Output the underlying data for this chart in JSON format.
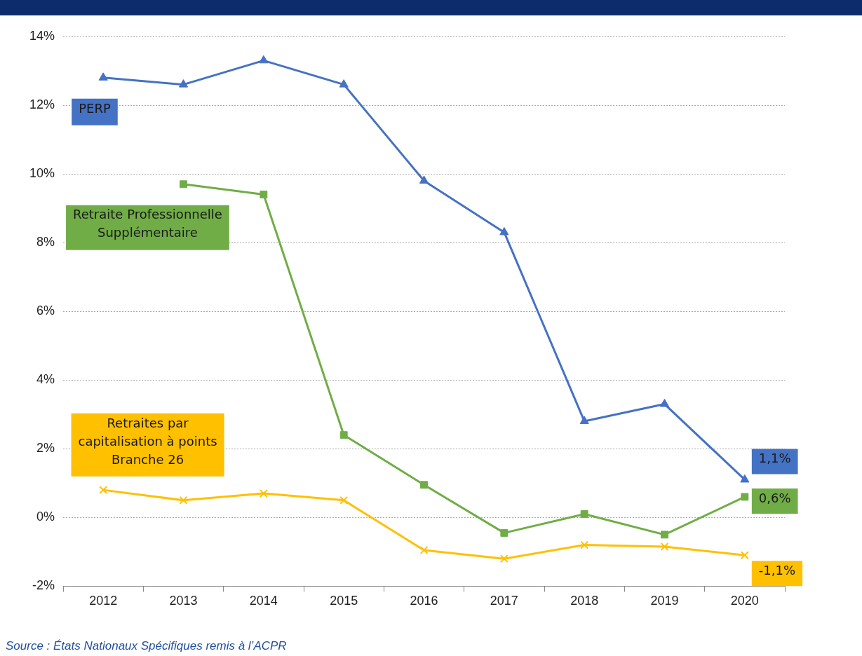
{
  "chart_data": {
    "type": "line",
    "categories": [
      "2012",
      "2013",
      "2014",
      "2015",
      "2016",
      "2017",
      "2018",
      "2019",
      "2020"
    ],
    "series": [
      {
        "name": "PERP",
        "color": "#4472c4",
        "marker": "triangle",
        "values": [
          12.8,
          12.6,
          13.3,
          12.6,
          9.8,
          8.3,
          2.8,
          3.3,
          1.1
        ]
      },
      {
        "name": "Retraite Professionnelle Supplémentaire",
        "color": "#70ad47",
        "marker": "square",
        "values": [
          null,
          9.7,
          9.4,
          2.4,
          0.95,
          -0.45,
          0.1,
          -0.5,
          0.6
        ]
      },
      {
        "name": "Retraites par capitalisation à points Branche 26",
        "color": "#ffc000",
        "marker": "cross",
        "values": [
          0.8,
          0.5,
          0.7,
          0.5,
          -0.95,
          -1.2,
          -0.8,
          -0.85,
          -1.1
        ]
      }
    ],
    "ylim": [
      -2,
      14
    ],
    "yticks": [
      {
        "value": -2,
        "label": "-2%"
      },
      {
        "value": 0,
        "label": "0%"
      },
      {
        "value": 2,
        "label": "2%"
      },
      {
        "value": 4,
        "label": "4%"
      },
      {
        "value": 6,
        "label": "6%"
      },
      {
        "value": 8,
        "label": "8%"
      },
      {
        "value": 10,
        "label": "10%"
      },
      {
        "value": 12,
        "label": "12%"
      },
      {
        "value": 14,
        "label": "14%"
      }
    ],
    "grid": "y",
    "legend": false,
    "line_style": "solid",
    "annotations": [
      {
        "text": "1,1%",
        "x": "2020",
        "y": 1.1
      },
      {
        "text": "0,6%",
        "x": "2020",
        "y": 0.6
      },
      {
        "text": "-1,1%",
        "x": "2020",
        "y": -1.1
      },
      "Source : États Nationaux Spécifiques remis à l’ACPR"
    ]
  }
}
